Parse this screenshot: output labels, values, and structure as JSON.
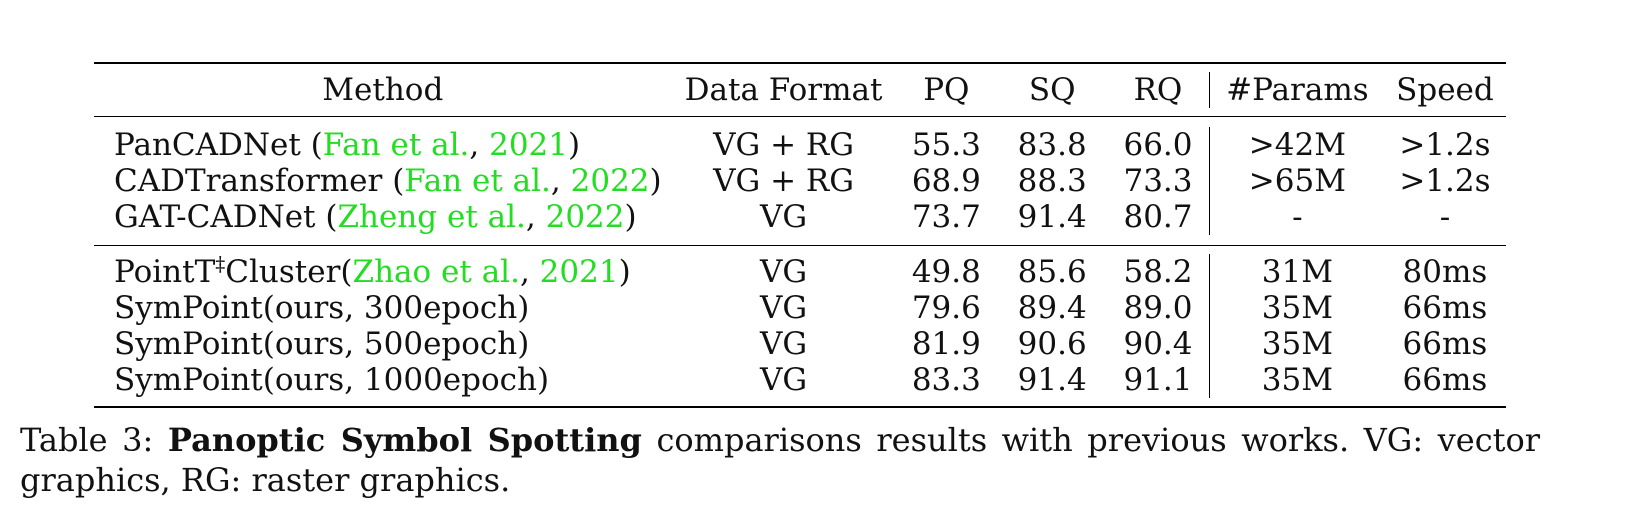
{
  "table": {
    "headers": {
      "method": "Method",
      "data_format": "Data Format",
      "pq": "PQ",
      "sq": "SQ",
      "rq": "RQ",
      "params": "#Params",
      "speed": "Speed"
    },
    "group1": [
      {
        "name": "PanCADNet",
        "cite_open": " (",
        "cite_author": "Fan et al.",
        "cite_sep": ", ",
        "cite_year": "2021",
        "cite_close": ")",
        "format": "VG + RG",
        "pq": "55.3",
        "sq": "83.8",
        "rq": "66.0",
        "params": ">42M",
        "speed": ">1.2s"
      },
      {
        "name": "CADTransformer",
        "cite_open": " (",
        "cite_author": "Fan et al.",
        "cite_sep": ", ",
        "cite_year": "2022",
        "cite_close": ")",
        "format": "VG + RG",
        "pq": "68.9",
        "sq": "88.3",
        "rq": "73.3",
        "params": ">65M",
        "speed": ">1.2s"
      },
      {
        "name": "GAT-CADNet",
        "cite_open": " (",
        "cite_author": "Zheng et al.",
        "cite_sep": ", ",
        "cite_year": "2022",
        "cite_close": ")",
        "format": "VG",
        "pq": "73.7",
        "sq": "91.4",
        "rq": "80.7",
        "params": "-",
        "speed": "-"
      }
    ],
    "group2": [
      {
        "name": "PointT",
        "sup": "‡",
        "name_rest": "Cluster",
        "cite_open": "(",
        "cite_author": "Zhao et al.",
        "cite_sep": ", ",
        "cite_year": "2021",
        "cite_close": ")",
        "format": "VG",
        "pq": "49.8",
        "sq": "85.6",
        "rq": "58.2",
        "params": "31M",
        "speed": "80ms"
      },
      {
        "name": "SymPoint(ours, 300epoch)",
        "format": "VG",
        "pq": "79.6",
        "sq": "89.4",
        "rq": "89.0",
        "params": "35M",
        "speed": "66ms"
      },
      {
        "name": "SymPoint(ours, 500epoch)",
        "format": "VG",
        "pq": "81.9",
        "sq": "90.6",
        "rq": "90.4",
        "params": "35M",
        "speed": "66ms"
      },
      {
        "name": "SymPoint(ours, 1000epoch)",
        "format": "VG",
        "pq": "83.3",
        "sq": "91.4",
        "rq": "91.1",
        "params": "35M",
        "speed": "66ms"
      }
    ]
  },
  "caption": {
    "label": "Table 3:",
    "bold": "Panoptic Symbol Spotting",
    "text": "comparisons results with previous works.  VG: vector graphics, RG: raster graphics."
  },
  "colors": {
    "citation": "#22dd22",
    "text": "#111111"
  }
}
